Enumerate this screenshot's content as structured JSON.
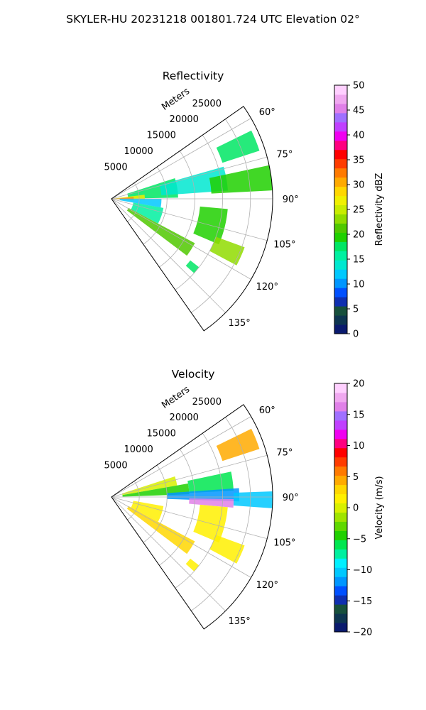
{
  "suptitle": "SKYLER-HU  20231218  001801.724 UTC Elevation 02°",
  "chart_data": [
    {
      "type": "heatmap",
      "subtype": "polar-sector (PPI)",
      "title": "Reflectivity",
      "r_axis_label": "Meters",
      "r_ticks": [
        5000,
        10000,
        15000,
        20000,
        25000
      ],
      "r_tick_labels": [
        "5000",
        "10000",
        "15000",
        "20000",
        "25000"
      ],
      "r_max": 29000,
      "theta_ticks": [
        60,
        75,
        90,
        105,
        120,
        135
      ],
      "theta_tick_labels": [
        "60°",
        "75°",
        "90°",
        "105°",
        "120°",
        "135°"
      ],
      "theta_range": [
        55,
        145
      ],
      "grid": true,
      "colorbar": {
        "label": "Reflectivity dBZ",
        "range": [
          0,
          50
        ],
        "ticks": [
          0,
          5,
          10,
          15,
          20,
          25,
          30,
          35,
          40,
          45,
          50
        ],
        "tick_labels": [
          "0",
          "5",
          "10",
          "15",
          "20",
          "25",
          "30",
          "35",
          "40",
          "45",
          "50"
        ],
        "colors": [
          "#0a1a6e",
          "#0d3550",
          "#17503c",
          "#0f2fb0",
          "#0050ff",
          "#0096ff",
          "#00c8ff",
          "#00e8d0",
          "#00f0a0",
          "#00e664",
          "#20d000",
          "#50c800",
          "#90dc00",
          "#c8ec00",
          "#f0f000",
          "#ffd700",
          "#ffaa00",
          "#ff7a00",
          "#ff3c00",
          "#ff0000",
          "#ff0080",
          "#f000f0",
          "#c040ff",
          "#a070ff",
          "#e080e8",
          "#f0a8f0",
          "#ffd0ff"
        ]
      },
      "echo_regions": [
        {
          "theta": [
            64,
            72
          ],
          "r": [
            21000,
            28000
          ],
          "value": 18
        },
        {
          "theta": [
            72,
            89
          ],
          "r": [
            3000,
            12000
          ],
          "value": 17
        },
        {
          "theta": [
            74,
            86
          ],
          "r": [
            9000,
            21000
          ],
          "value": 14
        },
        {
          "theta": [
            78,
            87
          ],
          "r": [
            18000,
            29000
          ],
          "value": 19
        },
        {
          "theta": [
            83,
            92
          ],
          "r": [
            0,
            6000
          ],
          "value": 27
        },
        {
          "theta": [
            86,
            94
          ],
          "r": [
            0,
            4000
          ],
          "value": 33
        },
        {
          "theta": [
            90,
            100
          ],
          "r": [
            1500,
            9000
          ],
          "value": 12
        },
        {
          "theta": [
            100,
            118
          ],
          "r": [
            4000,
            9500
          ],
          "value": 15
        },
        {
          "theta": [
            118,
            127
          ],
          "r": [
            3500,
            17000
          ],
          "value": 21
        },
        {
          "theta": [
            95,
            113
          ],
          "r": [
            16000,
            21000
          ],
          "value": 20
        },
        {
          "theta": [
            110,
            118
          ],
          "r": [
            20000,
            25500
          ],
          "value": 24
        },
        {
          "theta": [
            128,
            132
          ],
          "r": [
            18000,
            20000
          ],
          "value": 18
        }
      ]
    },
    {
      "type": "heatmap",
      "subtype": "polar-sector (PPI)",
      "title": "Velocity",
      "r_axis_label": "Meters",
      "r_ticks": [
        5000,
        10000,
        15000,
        20000,
        25000
      ],
      "r_tick_labels": [
        "5000",
        "10000",
        "15000",
        "20000",
        "25000"
      ],
      "r_max": 29000,
      "theta_ticks": [
        60,
        75,
        90,
        105,
        120,
        135
      ],
      "theta_tick_labels": [
        "60°",
        "75°",
        "90°",
        "105°",
        "120°",
        "135°"
      ],
      "theta_range": [
        55,
        145
      ],
      "grid": true,
      "colorbar": {
        "label": "Velocity (m/s)",
        "range": [
          -20,
          20
        ],
        "ticks": [
          -20,
          -15,
          -10,
          -5,
          0,
          5,
          10,
          15,
          20
        ],
        "tick_labels": [
          "−20",
          "−15",
          "−10",
          "−5",
          "0",
          "5",
          "10",
          "15",
          "20"
        ],
        "colors": [
          "#0a1a6e",
          "#0d3550",
          "#17503c",
          "#0f2fb0",
          "#0050ff",
          "#0096ff",
          "#00c8ff",
          "#00f0ff",
          "#00f0a0",
          "#00e650",
          "#20d000",
          "#60d800",
          "#a0e400",
          "#d8f000",
          "#fff000",
          "#ffd700",
          "#ffaa00",
          "#ff7a00",
          "#ff3c00",
          "#ff0000",
          "#ff0080",
          "#f000f0",
          "#c040ff",
          "#a070ff",
          "#e080e8",
          "#f0a8f0",
          "#ffd0ff"
        ]
      },
      "echo_regions": [
        {
          "theta": [
            64,
            72
          ],
          "r": [
            21000,
            28000
          ],
          "value": 4
        },
        {
          "theta": [
            72,
            80
          ],
          "r": [
            2000,
            12000
          ],
          "value": 0
        },
        {
          "theta": [
            80,
            88
          ],
          "r": [
            2000,
            14000
          ],
          "value": -5
        },
        {
          "theta": [
            78,
            87
          ],
          "r": [
            14000,
            22000
          ],
          "value": -6
        },
        {
          "theta": [
            86,
            92
          ],
          "r": [
            10000,
            23000
          ],
          "value": -12
        },
        {
          "theta": [
            88,
            94
          ],
          "r": [
            22000,
            29000
          ],
          "value": -11
        },
        {
          "theta": [
            91,
            95
          ],
          "r": [
            14000,
            22000
          ],
          "value": 16
        },
        {
          "theta": [
            100,
            118
          ],
          "r": [
            4000,
            9500
          ],
          "value": 2
        },
        {
          "theta": [
            118,
            127
          ],
          "r": [
            3500,
            17000
          ],
          "value": 3
        },
        {
          "theta": [
            95,
            113
          ],
          "r": [
            16000,
            21000
          ],
          "value": 1
        },
        {
          "theta": [
            110,
            118
          ],
          "r": [
            20000,
            25500
          ],
          "value": 2
        },
        {
          "theta": [
            128,
            132
          ],
          "r": [
            18000,
            20000
          ],
          "value": 1
        }
      ]
    }
  ]
}
